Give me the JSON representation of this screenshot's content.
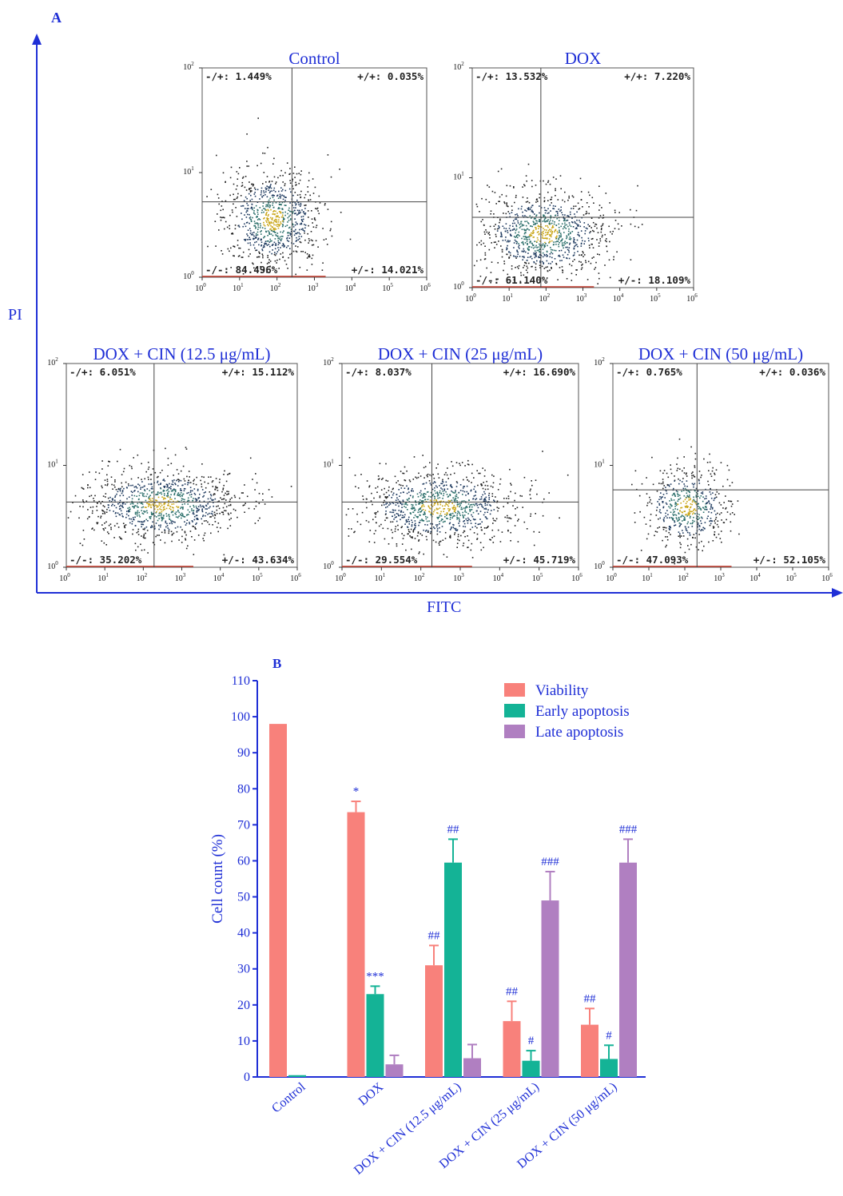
{
  "panel_a": {
    "letter": "A",
    "y_axis_label": "PI",
    "x_axis_label": "FITC",
    "tick_base": "10",
    "x_tick_exps": [
      "0",
      "1",
      "2",
      "3",
      "4",
      "5",
      "6"
    ],
    "y_tick_exps": [
      "0",
      "1",
      "2"
    ],
    "plots": [
      {
        "title": "Control",
        "ul": "-/+: 1.449%",
        "ur": "+/+: 0.035%",
        "ll": "-/-: 84.496%",
        "lr": "+/-: 14.021%"
      },
      {
        "title": "DOX",
        "ul": "-/+: 13.532%",
        "ur": "+/+: 7.220%",
        "ll": "-/-: 61.140%",
        "lr": "+/-: 18.109%"
      },
      {
        "title": "DOX + CIN (12.5 μg/mL)",
        "ul": "-/+: 6.051%",
        "ur": "+/+: 15.112%",
        "ll": "-/-: 35.202%",
        "lr": "+/-: 43.634%"
      },
      {
        "title": "DOX + CIN (25 μg/mL)",
        "ul": "-/+: 8.037%",
        "ur": "+/+: 16.690%",
        "ll": "-/-: 29.554%",
        "lr": "+/-: 45.719%"
      },
      {
        "title": "DOX + CIN (50 μg/mL)",
        "ul": "-/+: 0.765%",
        "ur": "+/+: 0.036%",
        "ll": "-/-: 47.093%",
        "lr": "+/-: 52.105%"
      }
    ]
  },
  "chart_data": {
    "type": "bar",
    "panel_letter": "B",
    "title": "",
    "xlabel": "",
    "ylabel": "Cell count (%)",
    "ylim": [
      0,
      110
    ],
    "yticks": [
      0,
      10,
      20,
      30,
      40,
      50,
      60,
      70,
      80,
      90,
      100,
      110
    ],
    "categories": [
      "Control",
      "DOX",
      "DOX + CIN (12.5 μg/mL)",
      "DOX + CIN (25 μg/mL)",
      "DOX + CIN (50 μg/mL)"
    ],
    "legend_position": "top-right",
    "series": [
      {
        "name": "Viability",
        "color": "#f8817b",
        "values": [
          98,
          73.5,
          31,
          15.5,
          14.5
        ],
        "errors": [
          0,
          3,
          5.5,
          5.5,
          4.5
        ],
        "annotations": [
          "",
          "*",
          "##",
          "##",
          "##"
        ]
      },
      {
        "name": "Early apoptosis",
        "color": "#14b396",
        "values": [
          0.5,
          23,
          59.5,
          4.5,
          5
        ],
        "errors": [
          0,
          2.2,
          6.5,
          2.8,
          3.8
        ],
        "annotations": [
          "",
          "***",
          "##",
          "#",
          "#"
        ]
      },
      {
        "name": "Late apoptosis",
        "color": "#b07fc1",
        "values": [
          0,
          3.5,
          5.2,
          49,
          59.5
        ],
        "errors": [
          0,
          2.5,
          3.8,
          8,
          6.5
        ],
        "annotations": [
          "",
          "",
          "",
          "###",
          "###"
        ]
      }
    ]
  }
}
